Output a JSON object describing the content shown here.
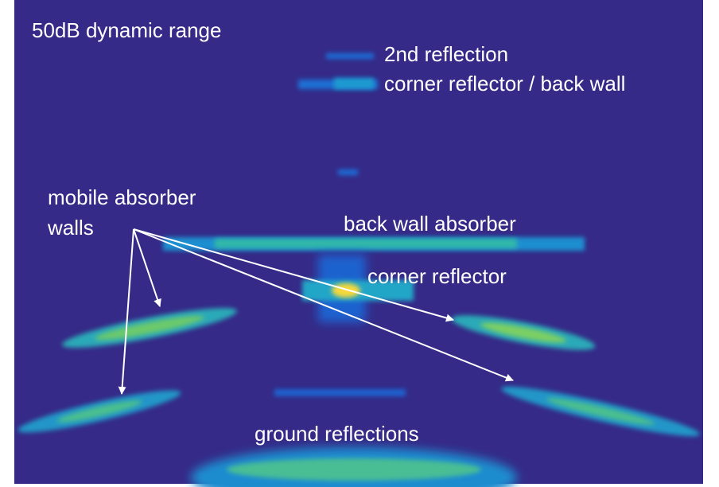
{
  "annotations": {
    "dynamic_range": "50dB dynamic range",
    "second_reflection": "2nd reflection",
    "corner_back_wall": "corner reflector / back wall",
    "mobile_walls": [
      "mobile absorber",
      "walls"
    ],
    "back_wall_absorber": "back wall absorber",
    "corner_reflector": "corner reflector",
    "ground_reflections": "ground reflections"
  }
}
